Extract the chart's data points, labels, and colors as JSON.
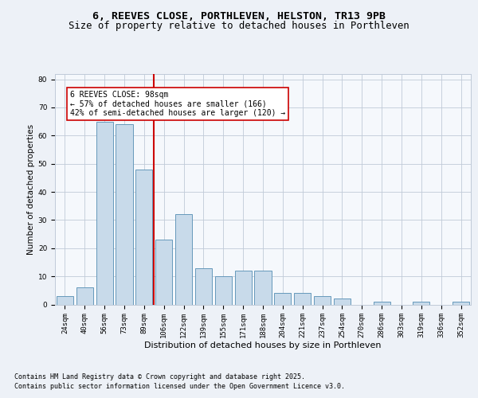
{
  "title1": "6, REEVES CLOSE, PORTHLEVEN, HELSTON, TR13 9PB",
  "title2": "Size of property relative to detached houses in Porthleven",
  "xlabel": "Distribution of detached houses by size in Porthleven",
  "ylabel": "Number of detached properties",
  "categories": [
    "24sqm",
    "40sqm",
    "56sqm",
    "73sqm",
    "89sqm",
    "106sqm",
    "122sqm",
    "139sqm",
    "155sqm",
    "171sqm",
    "188sqm",
    "204sqm",
    "221sqm",
    "237sqm",
    "254sqm",
    "270sqm",
    "286sqm",
    "303sqm",
    "319sqm",
    "336sqm",
    "352sqm"
  ],
  "values": [
    3,
    6,
    65,
    64,
    48,
    23,
    32,
    13,
    10,
    12,
    12,
    4,
    4,
    3,
    2,
    0,
    1,
    0,
    1,
    0,
    1
  ],
  "bar_color": "#c8daea",
  "bar_edge_color": "#6699bb",
  "vline_x": 4.5,
  "vline_color": "#cc0000",
  "annotation_text": "6 REEVES CLOSE: 98sqm\n← 57% of detached houses are smaller (166)\n42% of semi-detached houses are larger (120) →",
  "annotation_box_color": "#ffffff",
  "annotation_box_edge": "#cc0000",
  "footer1": "Contains HM Land Registry data © Crown copyright and database right 2025.",
  "footer2": "Contains public sector information licensed under the Open Government Licence v3.0.",
  "bg_color": "#edf1f7",
  "plot_bg_color": "#f5f8fc",
  "grid_color": "#c0cad8",
  "ylim_max": 82,
  "title1_fontsize": 9.5,
  "title2_fontsize": 8.8,
  "xlabel_fontsize": 8,
  "ylabel_fontsize": 7.5,
  "tick_fontsize": 6.5,
  "footer_fontsize": 6.0,
  "annot_fontsize": 7.0
}
